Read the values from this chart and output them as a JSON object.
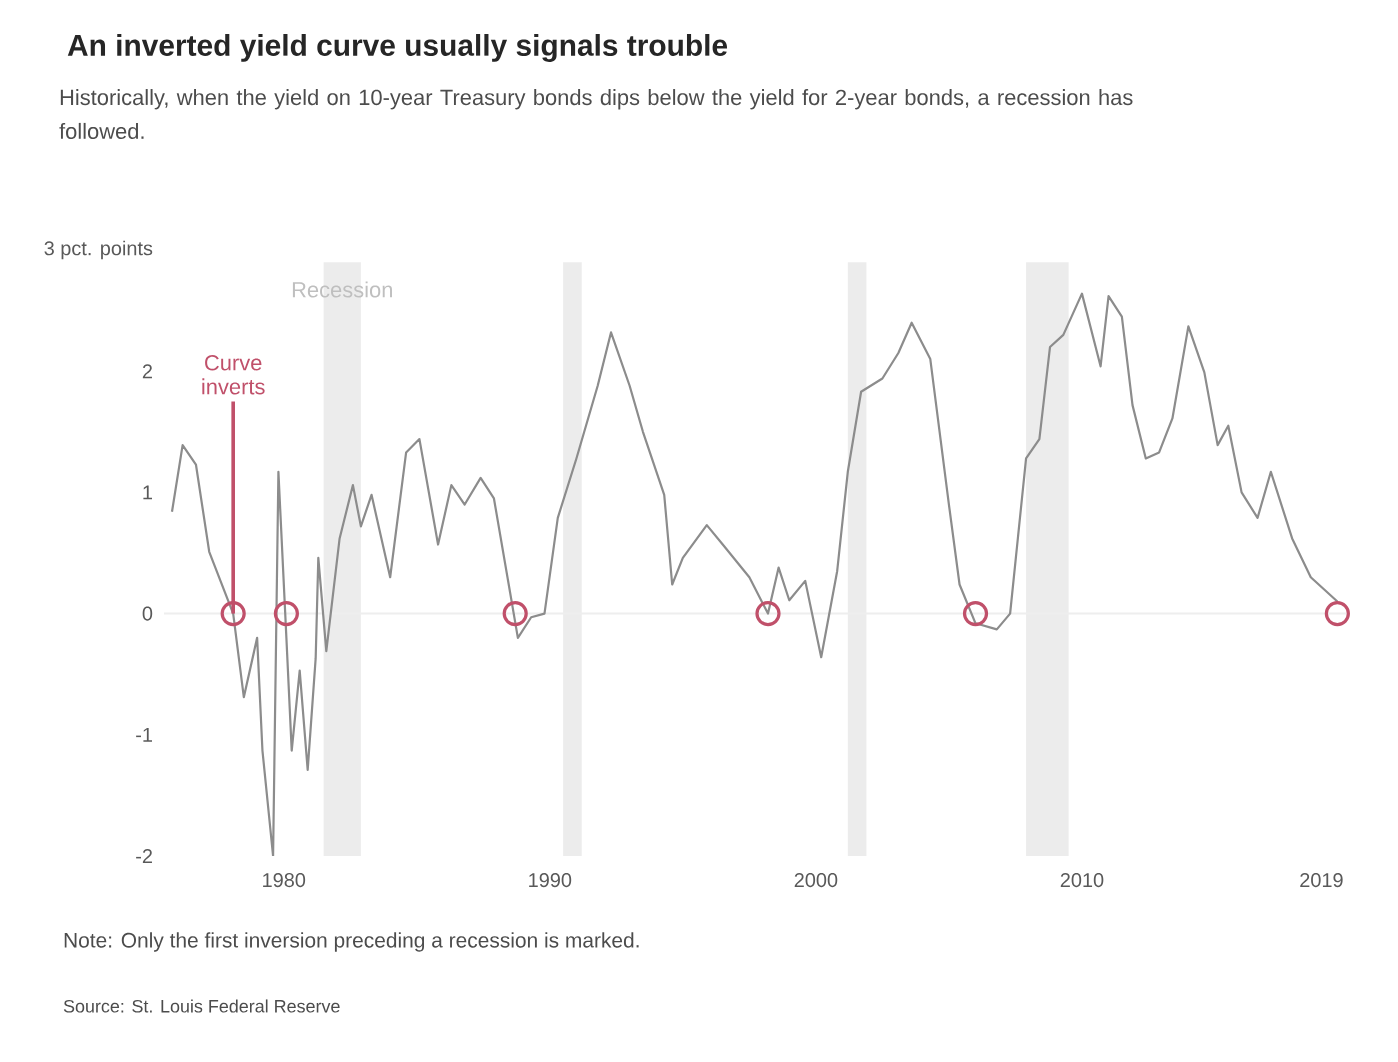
{
  "chart_data": {
    "type": "line",
    "title": "An inverted yield curve usually signals trouble",
    "subtitle": "Historically, when the yield on 10-year Treasury bonds dips below the yield for 2-year bonds, a recession has followed.",
    "xlim": [
      1975.5,
      2020
    ],
    "xticks": [
      1980,
      1990,
      2000,
      2010,
      2019
    ],
    "ylim": [
      -2,
      3
    ],
    "yticks": [
      -2,
      -1,
      0,
      1,
      2,
      {
        "value": 3,
        "label": "3 pct. points"
      }
    ],
    "series": [
      {
        "type": "line",
        "color": "#8c8c8c",
        "marker": "none",
        "x": [
          1975.8,
          1976.2,
          1976.7,
          1977.2,
          1978.1,
          1978.5,
          1979.0,
          1979.2,
          1979.6,
          1979.8,
          1980.1,
          1980.3,
          1980.6,
          1980.9,
          1981.2,
          1981.3,
          1981.6,
          1982.1,
          1982.6,
          1982.9,
          1983.3,
          1984.0,
          1984.6,
          1985.1,
          1985.8,
          1986.3,
          1986.8,
          1987.4,
          1987.9,
          1988.8,
          1989.3,
          1989.8,
          1990.3,
          1991.0,
          1991.8,
          1992.3,
          1993.0,
          1993.5,
          1994.3,
          1994.6,
          1995.0,
          1995.9,
          1996.5,
          1997.5,
          1998.2,
          1998.6,
          1999.0,
          1999.6,
          2000.2,
          2000.8,
          2001.2,
          2001.7,
          2002.5,
          2003.1,
          2003.6,
          2004.3,
          2005.0,
          2005.4,
          2006.0,
          2006.8,
          2007.3,
          2007.9,
          2008.4,
          2008.8,
          2009.3,
          2010.0,
          2010.7,
          2011.0,
          2011.5,
          2011.9,
          2012.4,
          2012.9,
          2013.4,
          2014.0,
          2014.6,
          2015.1,
          2015.5,
          2016.0,
          2016.6,
          2017.1,
          2017.9,
          2018.6,
          2019.6
        ],
        "values": [
          0.84,
          1.39,
          1.23,
          0.51,
          0.0,
          -0.69,
          -0.2,
          -1.13,
          -2.0,
          1.17,
          -0.2,
          -1.13,
          -0.47,
          -1.29,
          -0.37,
          0.46,
          -0.31,
          0.62,
          1.06,
          0.72,
          0.98,
          0.3,
          1.33,
          1.44,
          0.57,
          1.06,
          0.9,
          1.12,
          0.95,
          -0.2,
          -0.03,
          0.0,
          0.79,
          1.28,
          1.88,
          2.32,
          1.88,
          1.5,
          0.98,
          0.24,
          0.46,
          0.73,
          0.57,
          0.3,
          0.0,
          0.38,
          0.11,
          0.27,
          -0.36,
          0.35,
          1.17,
          1.83,
          1.94,
          2.15,
          2.4,
          2.1,
          0.9,
          0.24,
          -0.08,
          -0.13,
          0.0,
          1.28,
          1.44,
          2.2,
          2.3,
          2.64,
          2.04,
          2.62,
          2.45,
          1.72,
          1.28,
          1.33,
          1.61,
          2.37,
          1.99,
          1.39,
          1.55,
          1.0,
          0.79,
          1.17,
          0.62,
          0.3,
          0.1
        ]
      },
      {
        "type": "scatter",
        "color": "#c0506a",
        "marker": "circle",
        "x": [
          1978.1,
          1980.1,
          1988.7,
          1998.2,
          2006.0,
          2019.6
        ],
        "values": [
          0,
          0,
          0,
          0,
          0,
          0
        ]
      }
    ],
    "ref_lines": [
      {
        "axis": "y",
        "value": 0,
        "color": "#eeeeee"
      }
    ],
    "bands": [
      {
        "axis": "x",
        "from": 1981.5,
        "to": 1982.9,
        "label": "Recession",
        "color": "#ececec"
      },
      {
        "axis": "x",
        "from": 1990.5,
        "to": 1991.2,
        "color": "#ececec"
      },
      {
        "axis": "x",
        "from": 2001.2,
        "to": 2001.9,
        "color": "#ececec"
      },
      {
        "axis": "x",
        "from": 2007.9,
        "to": 2009.5,
        "color": "#ececec"
      }
    ],
    "annotations": [
      {
        "text": "Curve inverts",
        "x": 1978.1,
        "y": 0
      },
      "Note: Only the first inversion preceding a recession is marked.",
      "Source: St. Louis Federal Reserve"
    ]
  }
}
